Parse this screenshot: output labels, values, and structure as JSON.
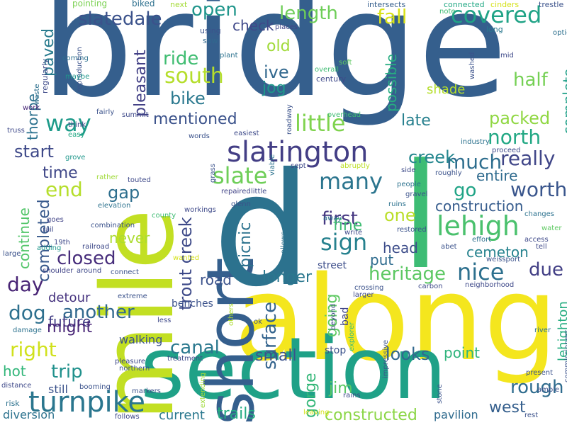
{
  "colors": {
    "background": "#ffffff",
    "palette": [
      "#355f8d",
      "#3fbc73",
      "#d8e219",
      "#25858e",
      "#1f9e89",
      "#440154",
      "#482878",
      "#6ece58",
      "#3e4a89",
      "#b5de2b"
    ]
  },
  "words": [
    {
      "text": "bridge",
      "color": "#355f8d"
    },
    {
      "text": "along",
      "color": "#f4e61e"
    },
    {
      "text": "section",
      "color": "#1fa187"
    },
    {
      "text": "mile",
      "color": "#c2df23"
    },
    {
      "text": "short",
      "color": "#355f8d"
    },
    {
      "text": "d",
      "color": "#2c728e"
    },
    {
      "text": "l",
      "color": "#3dbc74"
    },
    {
      "text": "slatington",
      "color": "#433e85"
    },
    {
      "text": "turnpike",
      "color": "#2a768e"
    },
    {
      "text": "covered",
      "color": "#20a386"
    },
    {
      "text": "south",
      "color": "#b5de2b"
    },
    {
      "text": "lehigh",
      "color": "#4ac16d"
    },
    {
      "text": "nice",
      "color": "#2d708e"
    },
    {
      "text": "slate",
      "color": "#6ece58"
    },
    {
      "text": "many",
      "color": "#2b758e"
    },
    {
      "text": "way",
      "color": "#1e9b8a"
    },
    {
      "text": "canal",
      "color": "#2a788e"
    },
    {
      "text": "sign",
      "color": "#26818e"
    },
    {
      "text": "surface",
      "color": "#33638d"
    },
    {
      "text": "little",
      "color": "#7fd34e"
    },
    {
      "text": "worth",
      "color": "#39558c"
    },
    {
      "text": "heritage",
      "color": "#5cc863"
    },
    {
      "text": "end",
      "color": "#b5de2b"
    },
    {
      "text": "right",
      "color": "#d0e11c"
    },
    {
      "text": "mentioned",
      "color": "#3b528b"
    },
    {
      "text": "closed",
      "color": "#472d7b"
    },
    {
      "text": "north",
      "color": "#22a884"
    },
    {
      "text": "dog",
      "color": "#2d708e"
    },
    {
      "text": "another",
      "color": "#31688e"
    },
    {
      "text": "day",
      "color": "#482475"
    },
    {
      "text": "much",
      "color": "#2e6e8e"
    },
    {
      "text": "creek",
      "color": "#24868e"
    },
    {
      "text": "trout creek",
      "color": "#3e4a89"
    },
    {
      "text": "really",
      "color": "#404688"
    },
    {
      "text": "slatedale",
      "color": "#3b528b"
    },
    {
      "text": "pleasant",
      "color": "#424086"
    },
    {
      "text": "open",
      "color": "#1f958b"
    },
    {
      "text": "length",
      "color": "#6ece58"
    },
    {
      "text": "paved",
      "color": "#297b8e"
    },
    {
      "text": "thorpe",
      "color": "#2c728e"
    },
    {
      "text": "fall",
      "color": "#d8e219"
    },
    {
      "text": "half",
      "color": "#75d054"
    },
    {
      "text": "complete",
      "color": "#1fa088"
    },
    {
      "text": "packed",
      "color": "#90d743"
    },
    {
      "text": "construction",
      "color": "#365c8d"
    },
    {
      "text": "rough",
      "color": "#2f6c8e"
    },
    {
      "text": "trip",
      "color": "#21918c"
    },
    {
      "text": "small",
      "color": "#3b528b"
    },
    {
      "text": "looks",
      "color": "#31688e"
    },
    {
      "text": "longer",
      "color": "#2a778e"
    },
    {
      "text": "gorge",
      "color": "#35b779"
    },
    {
      "text": "west",
      "color": "#355f8d"
    },
    {
      "text": "constructed",
      "color": "#8bd646"
    },
    {
      "text": "trails",
      "color": "#25ab82"
    },
    {
      "text": "first",
      "color": "#453781"
    },
    {
      "text": "gap",
      "color": "#2e6f8e"
    },
    {
      "text": "start",
      "color": "#3e4989"
    },
    {
      "text": "time",
      "color": "#3f4788"
    },
    {
      "text": "completed",
      "color": "#38598c"
    },
    {
      "text": "continue",
      "color": "#52c569"
    },
    {
      "text": "future",
      "color": "#433e85"
    },
    {
      "text": "never",
      "color": "#addc30"
    },
    {
      "text": "detour",
      "color": "#46337f"
    },
    {
      "text": "might",
      "color": "#482576"
    },
    {
      "text": "hot",
      "color": "#32b67a"
    },
    {
      "text": "ride",
      "color": "#40bd72"
    },
    {
      "text": "bike",
      "color": "#2a788e"
    },
    {
      "text": "ive",
      "color": "#31688e"
    },
    {
      "text": "jog",
      "color": "#1f988b"
    },
    {
      "text": "old",
      "color": "#a0da39"
    },
    {
      "text": "check",
      "color": "#3f4889"
    },
    {
      "text": "possible",
      "color": "#27ad81"
    },
    {
      "text": "shade",
      "color": "#b5de2b"
    },
    {
      "text": "late",
      "color": "#27808e"
    },
    {
      "text": "go",
      "color": "#20a486"
    },
    {
      "text": "entire",
      "color": "#2f6b8e"
    },
    {
      "text": "due",
      "color": "#423f85"
    },
    {
      "text": "cemeton",
      "color": "#26828e"
    },
    {
      "text": "head",
      "color": "#3d4d8a"
    },
    {
      "text": "one",
      "color": "#bade28"
    },
    {
      "text": "fine",
      "color": "#3fbc73"
    },
    {
      "text": "put",
      "color": "#2f6c8e"
    },
    {
      "text": "going",
      "color": "#5ec962"
    },
    {
      "text": "road",
      "color": "#3b528b"
    },
    {
      "text": "picnic",
      "color": "#2c728e"
    },
    {
      "text": "jim",
      "color": "#5ac864"
    },
    {
      "text": "point",
      "color": "#2fb47c"
    },
    {
      "text": "lehighton",
      "color": "#26ad81"
    },
    {
      "text": "pavilion",
      "color": "#2f6b8e"
    },
    {
      "text": "current",
      "color": "#2a788e"
    },
    {
      "text": "diversion",
      "color": "#2c728e"
    },
    {
      "text": "still",
      "color": "#3b528b"
    },
    {
      "text": "walking",
      "color": "#3b528b"
    },
    {
      "text": "benches",
      "color": "#3b528b"
    },
    {
      "text": "street",
      "color": "#3d4e8a"
    },
    {
      "text": "stop",
      "color": "#3b528b"
    },
    {
      "text": "bad",
      "color": "#404588"
    }
  ],
  "small_words": [
    {
      "text": "pointing",
      "color": "#7ad151"
    },
    {
      "text": "biked",
      "color": "#2d708e"
    },
    {
      "text": "next",
      "color": "#a5db36"
    },
    {
      "text": "intersects",
      "color": "#355f8d"
    },
    {
      "text": "connected",
      "color": "#22a884"
    },
    {
      "text": "cinders",
      "color": "#d5e21a"
    },
    {
      "text": "trestle",
      "color": "#3b528b"
    },
    {
      "text": "note",
      "color": "#3dbc74"
    },
    {
      "text": "using",
      "color": "#3b528b"
    },
    {
      "text": "places",
      "color": "#414487"
    },
    {
      "text": "long",
      "color": "#2a788e"
    },
    {
      "text": "option",
      "color": "#2d708e"
    },
    {
      "text": "saw",
      "color": "#31688e"
    },
    {
      "text": "plant",
      "color": "#2c728e"
    },
    {
      "text": "mid",
      "color": "#3e4989"
    },
    {
      "text": "regularly",
      "color": "#3e4a89"
    },
    {
      "text": "coming",
      "color": "#2d708e"
    },
    {
      "text": "reproduction",
      "color": "#3b528b"
    },
    {
      "text": "soft",
      "color": "#5ec962"
    },
    {
      "text": "overall",
      "color": "#3fbc73"
    },
    {
      "text": "century",
      "color": "#3e4989"
    },
    {
      "text": "washed",
      "color": "#3b528b"
    },
    {
      "text": "maybe",
      "color": "#1f978b"
    },
    {
      "text": "waste",
      "color": "#2d708e"
    },
    {
      "text": "work",
      "color": "#482878"
    },
    {
      "text": "truss",
      "color": "#3e4989"
    },
    {
      "text": "think",
      "color": "#414487"
    },
    {
      "text": "fairly",
      "color": "#3b528b"
    },
    {
      "text": "summit",
      "color": "#3e4989"
    },
    {
      "text": "easy",
      "color": "#22a884"
    },
    {
      "text": "roadway",
      "color": "#3b528b"
    },
    {
      "text": "overhead",
      "color": "#3fbc73"
    },
    {
      "text": "easiest",
      "color": "#3e4a89"
    },
    {
      "text": "industry",
      "color": "#2c728e"
    },
    {
      "text": "proceed",
      "color": "#3e4989"
    },
    {
      "text": "grove",
      "color": "#1f978b"
    },
    {
      "text": "words",
      "color": "#3b528b"
    },
    {
      "text": "viable",
      "color": "#2c728e"
    },
    {
      "text": "sept",
      "color": "#3e4989"
    },
    {
      "text": "abruptly",
      "color": "#bddf26"
    },
    {
      "text": "side",
      "color": "#3e4a89"
    },
    {
      "text": "roughly",
      "color": "#3b528b"
    },
    {
      "text": "rather",
      "color": "#a0da39"
    },
    {
      "text": "touted",
      "color": "#3e4989"
    },
    {
      "text": "grass",
      "color": "#3b528b"
    },
    {
      "text": "people",
      "color": "#2c728e"
    },
    {
      "text": "repaired",
      "color": "#414487"
    },
    {
      "text": "little",
      "color": "#3e4989"
    },
    {
      "text": "gravel",
      "color": "#3b528b"
    },
    {
      "text": "elevation",
      "color": "#2c728e"
    },
    {
      "text": "ruins",
      "color": "#2c728e"
    },
    {
      "text": "workings",
      "color": "#3e4989"
    },
    {
      "text": "glenn",
      "color": "#3b528b"
    },
    {
      "text": "goes",
      "color": "#414487"
    },
    {
      "text": "county",
      "color": "#3fbc73"
    },
    {
      "text": "away",
      "color": "#2c728e"
    },
    {
      "text": "changes",
      "color": "#2c728e"
    },
    {
      "text": "rail",
      "color": "#3e4989"
    },
    {
      "text": "combination",
      "color": "#3b528b"
    },
    {
      "text": "write",
      "color": "#3e4989"
    },
    {
      "text": "restored",
      "color": "#3b528b"
    },
    {
      "text": "water",
      "color": "#5ec962"
    },
    {
      "text": "19th",
      "color": "#3e4989"
    },
    {
      "text": "allows",
      "color": "#2c728e"
    },
    {
      "text": "effort",
      "color": "#2d708e"
    },
    {
      "text": "access",
      "color": "#3e4989"
    },
    {
      "text": "adding",
      "color": "#1f978b"
    },
    {
      "text": "railroad",
      "color": "#3e4989"
    },
    {
      "text": "abet",
      "color": "#3b528b"
    },
    {
      "text": "tell",
      "color": "#3e4989"
    },
    {
      "text": "large",
      "color": "#3b528b"
    },
    {
      "text": "wanted",
      "color": "#d5e21a"
    },
    {
      "text": "weissport",
      "color": "#3b528b"
    },
    {
      "text": "shoulder",
      "color": "#414487"
    },
    {
      "text": "around",
      "color": "#3e4989"
    },
    {
      "text": "connect",
      "color": "#3b528b"
    },
    {
      "text": "neighborhood",
      "color": "#3e4989"
    },
    {
      "text": "carbon",
      "color": "#3e4989"
    },
    {
      "text": "crossing",
      "color": "#3b528b"
    },
    {
      "text": "larger",
      "color": "#3e4989"
    },
    {
      "text": "extreme",
      "color": "#3b528b"
    },
    {
      "text": "less",
      "color": "#3e4989"
    },
    {
      "text": "others",
      "color": "#addc30"
    },
    {
      "text": "beyond",
      "color": "#3e4989"
    },
    {
      "text": "ok",
      "color": "#3b528b"
    },
    {
      "text": "explorer",
      "color": "#3fbc73"
    },
    {
      "text": "damage",
      "color": "#2c728e"
    },
    {
      "text": "river",
      "color": "#2c728e"
    },
    {
      "text": "commissioners",
      "color": "#3b528b"
    },
    {
      "text": "impressive",
      "color": "#3b528b"
    },
    {
      "text": "pleasure",
      "color": "#3e4989"
    },
    {
      "text": "northern",
      "color": "#3b528b"
    },
    {
      "text": "treatment",
      "color": "#3e4989"
    },
    {
      "text": "extending",
      "color": "#a0da39"
    },
    {
      "text": "present",
      "color": "#3b528b"
    },
    {
      "text": "distance",
      "color": "#3e4989"
    },
    {
      "text": "booming",
      "color": "#3b528b"
    },
    {
      "text": "markers",
      "color": "#3b528b"
    },
    {
      "text": "rains",
      "color": "#3e4989"
    },
    {
      "text": "stone",
      "color": "#3b528b"
    },
    {
      "text": "ample",
      "color": "#3b528b"
    },
    {
      "text": "risk",
      "color": "#2c728e"
    },
    {
      "text": "follows",
      "color": "#3e4989"
    },
    {
      "text": "leaving",
      "color": "#d5e21a"
    },
    {
      "text": "rest",
      "color": "#3b528b"
    }
  ]
}
